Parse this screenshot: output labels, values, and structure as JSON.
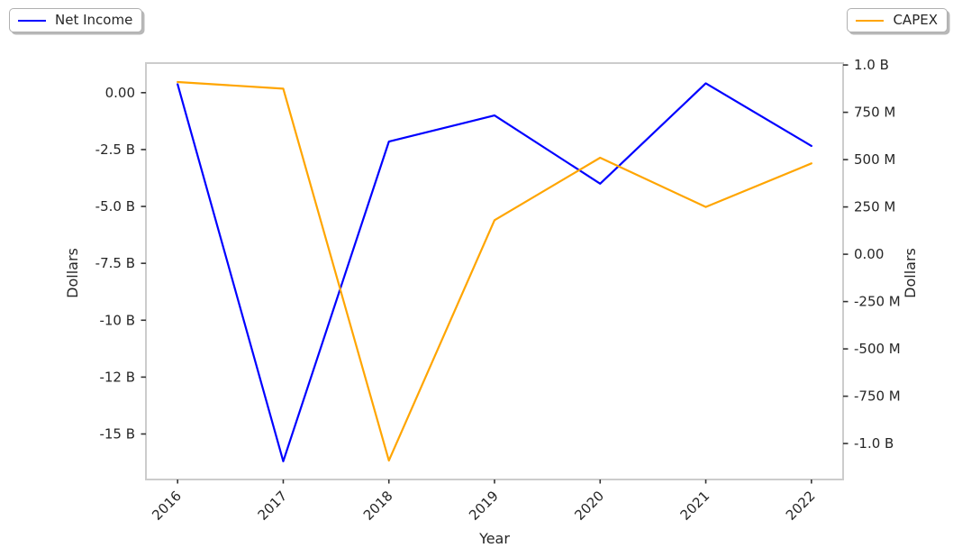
{
  "chart_data": {
    "type": "line",
    "title": "",
    "x": [
      2016,
      2017,
      2018,
      2019,
      2020,
      2021,
      2022
    ],
    "series": [
      {
        "name": "Net Income",
        "yaxis": "left",
        "color": "#0000ff",
        "unit": "billion USD",
        "values": [
          0.37,
          -16.2,
          -2.15,
          -1.0,
          -4.0,
          0.41,
          -2.34
        ]
      },
      {
        "name": "CAPEX",
        "yaxis": "right",
        "color": "#ffa500",
        "unit": "billion USD",
        "values": [
          0.91,
          0.875,
          -1.09,
          0.18,
          0.51,
          0.25,
          0.48
        ]
      }
    ],
    "x_axis": {
      "label": "Year",
      "xlim": [
        2015.7,
        2022.3
      ],
      "tick_labels": [
        "2016",
        "2017",
        "2018",
        "2019",
        "2020",
        "2021",
        "2022"
      ],
      "tick_rotation_deg": 45
    },
    "left_axis": {
      "label": "Dollars",
      "ylim": [
        -17.0,
        1.3
      ],
      "ticks": [
        {
          "value": 0,
          "label": "0.00"
        },
        {
          "value": -2.5,
          "label": "-2.5 B"
        },
        {
          "value": -5,
          "label": "-5.0 B"
        },
        {
          "value": -7.5,
          "label": "-7.5 B"
        },
        {
          "value": -10,
          "label": "-10 B"
        },
        {
          "value": -12.5,
          "label": "-12 B"
        },
        {
          "value": -15,
          "label": "-15 B"
        }
      ]
    },
    "right_axis": {
      "label": "Dollars",
      "ylim": [
        -1.19,
        1.01
      ],
      "ticks": [
        {
          "value": 1.0,
          "label": "1.0 B"
        },
        {
          "value": 0.75,
          "label": "750 M"
        },
        {
          "value": 0.5,
          "label": "500 M"
        },
        {
          "value": 0.25,
          "label": "250 M"
        },
        {
          "value": 0,
          "label": "0.00"
        },
        {
          "value": -0.25,
          "label": "-250 M"
        },
        {
          "value": -0.5,
          "label": "-500 M"
        },
        {
          "value": -0.75,
          "label": "-750 M"
        },
        {
          "value": -1.0,
          "label": "-1.0 B"
        }
      ]
    },
    "legend": [
      {
        "label": "Net Income",
        "position": "upper-left"
      },
      {
        "label": "CAPEX",
        "position": "upper-right"
      }
    ],
    "grid": false,
    "colors": {
      "spine": "#cccccc",
      "tick_mark": "#333333",
      "text": "#262626"
    }
  }
}
